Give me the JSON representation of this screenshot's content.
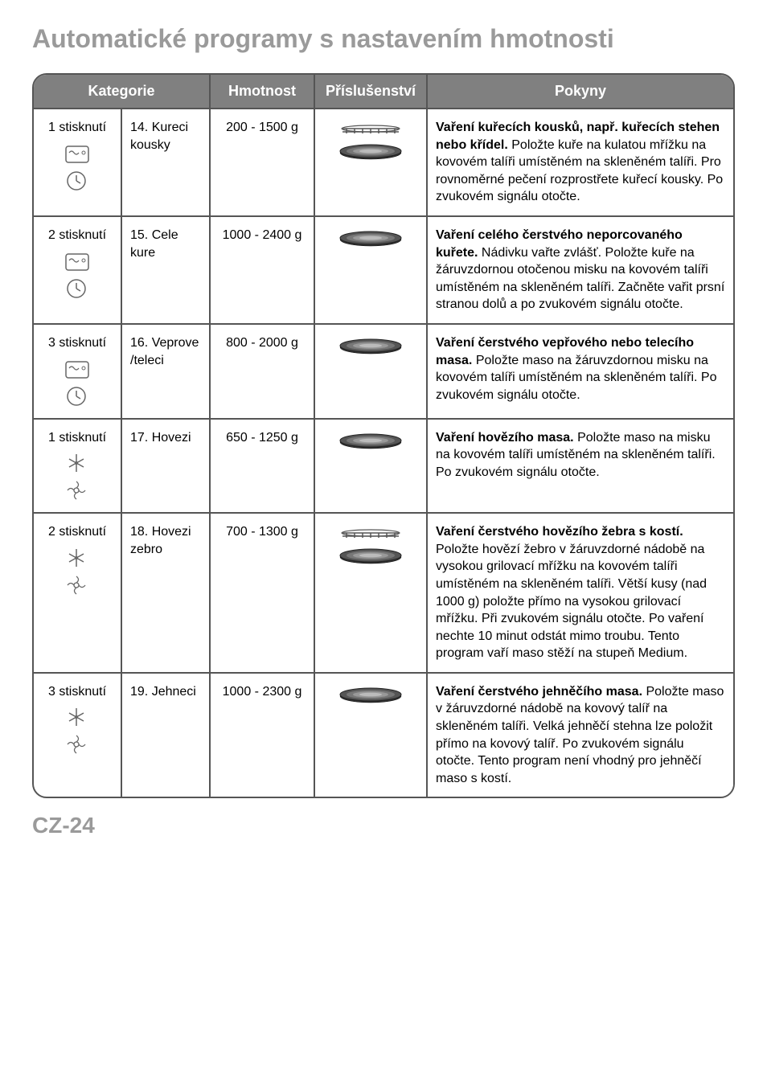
{
  "title": "Automatické programy s nastavením hmotnosti",
  "footer": "CZ-24",
  "headers": {
    "kategorie": "Kategorie",
    "hmotnost": "Hmotnost",
    "prislusenstvi": "Příslušenství",
    "pokyny": "Pokyny"
  },
  "rows": [
    {
      "press": "1 stisknutí",
      "icons": [
        "microwave",
        "clock"
      ],
      "sub": "14. Kureci kousky",
      "weight": "200 - 1500 g",
      "accessory": [
        "rack",
        "plate"
      ],
      "bold": "Vaření kuřecích kousků, např. kuřecích stehen nebo křídel.",
      "text": " Položte kuře na kulatou mřížku na kovovém talíři umístěném na skleněném talíři. Pro rovnoměrné pečení rozprostřete kuřecí kousky. Po zvukovém signálu otočte."
    },
    {
      "press": "2 stisknutí",
      "icons": [
        "microwave",
        "clock"
      ],
      "sub": "15. Cele kure",
      "weight": "1000 - 2400 g",
      "accessory": [
        "plate"
      ],
      "bold": "Vaření celého čerstvého neporcovaného kuřete.",
      "text": " Nádivku vařte zvlášť. Položte kuře na žáruvzdornou otočenou misku na kovovém talíři umístěném na skleněném talíři. Začněte vařit prsní stranou dolů a po zvukovém signálu otočte."
    },
    {
      "press": "3 stisknutí",
      "icons": [
        "microwave",
        "clock"
      ],
      "sub": "16. Veprove /teleci",
      "weight": "800 - 2000 g",
      "accessory": [
        "plate"
      ],
      "bold": "Vaření čerstvého vepřového nebo telecího masa.",
      "text": " Položte maso na žáruvzdornou misku na kovovém talíři umístěném na skleněném talíři. Po zvukovém signálu otočte."
    },
    {
      "press": "1 stisknutí",
      "icons": [
        "defrost",
        "fan"
      ],
      "sub": "17. Hovezi",
      "weight": "650 - 1250 g",
      "accessory": [
        "plate"
      ],
      "bold": "Vaření hovězího masa.",
      "text": " Položte maso na misku na kovovém talíři umístěném na skleněném talíři. Po zvukovém signálu otočte."
    },
    {
      "press": "2 stisknutí",
      "icons": [
        "defrost",
        "fan"
      ],
      "sub": "18. Hovezi zebro",
      "weight": "700 - 1300 g",
      "accessory": [
        "rack",
        "plate"
      ],
      "bold": "Vaření čerstvého hovězího žebra s kostí.",
      "text": " Položte hovězí žebro v žáruvzdorné nádobě na vysokou grilovací mřížku na kovovém talíři umístěném na skleněném talíři. Větší kusy (nad 1000 g) položte přímo na vysokou grilovací mřížku. Při zvukovém signálu otočte. Po vaření nechte 10 minut odstát mimo troubu. Tento program vaří maso stěží na stupeň Medium."
    },
    {
      "press": "3 stisknutí",
      "icons": [
        "defrost",
        "fan"
      ],
      "sub": "19. Jehneci",
      "weight": "1000 - 2300 g",
      "accessory": [
        "plate"
      ],
      "bold": "Vaření čerstvého jehněčího masa.",
      "text": " Položte maso v žáruvzdorné nádobě na kovový talíř na skleněném talíři. Velká jehněčí stehna lze položit přímo na kovový talíř. Po zvukovém signálu otočte. Tento program není vhodný pro jehněčí maso s kostí."
    }
  ]
}
